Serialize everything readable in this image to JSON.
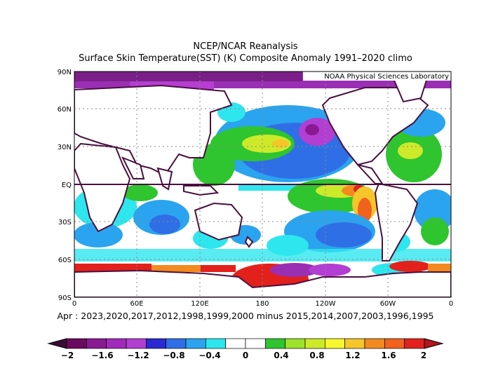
{
  "title_line1": "NCEP/NCAR Reanalysis",
  "title_line2": "Surface Skin Temperature(SST) (K) Composite Anomaly 1991–2020 climo",
  "credit": "NOAA Physical Sciences Laboratory",
  "lat_ticks": [
    "90N",
    "60N",
    "30N",
    "EQ",
    "30S",
    "60S",
    "90S"
  ],
  "lon_ticks": [
    "0",
    "60E",
    "120E",
    "180",
    "120W",
    "60W",
    "0"
  ],
  "caption": "Apr : 2023,2020,2017,2012,1998,1999,2000  minus 2015,2014,2007,2003,1996,1995",
  "colorbar": {
    "labels": [
      "−2",
      "−1.6",
      "−1.2",
      "−0.8",
      "−0.4",
      "0",
      "0.4",
      "0.8",
      "1.2",
      "1.6",
      "2"
    ],
    "colors": [
      "#6a0a5e",
      "#8a1a92",
      "#a12aba",
      "#b33ed2",
      "#2a2ad0",
      "#2f6fe6",
      "#2aa4ee",
      "#2ee6ee",
      "#ffffff",
      "#ffffff",
      "#2ec52e",
      "#9ce22a",
      "#cdea2a",
      "#f7f72e",
      "#f5c52a",
      "#f28a1f",
      "#f0621e",
      "#e2211c"
    ],
    "arrow_left": "#3d0a3a",
    "arrow_right": "#b0161b"
  },
  "map": {
    "lon_range": [
      0,
      360
    ],
    "lat_range": [
      -90,
      90
    ],
    "equator_line": true,
    "grid": "dotted",
    "ocean_background": "#ffffff",
    "continent_outline": "#4a0f3f"
  }
}
